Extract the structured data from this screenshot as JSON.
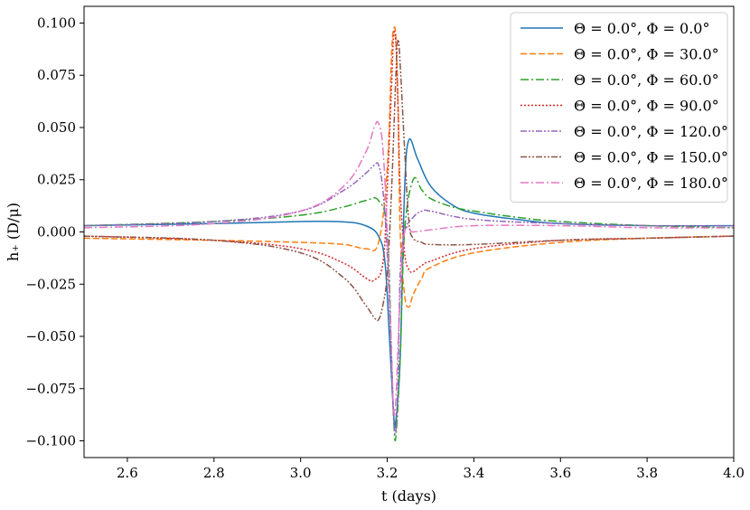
{
  "chart_data": {
    "type": "line",
    "xlabel": "t (days)",
    "ylabel": "h₊ (D/μ)",
    "xlim": [
      2.5,
      4.0
    ],
    "ylim": [
      -0.108,
      0.108
    ],
    "xticks": [
      2.6,
      2.8,
      3.0,
      3.2,
      3.4,
      3.6,
      3.8,
      4.0
    ],
    "xtick_labels": [
      "2.6",
      "2.8",
      "3.0",
      "3.2",
      "3.4",
      "3.6",
      "3.8",
      "4.0"
    ],
    "yticks": [
      -0.1,
      -0.075,
      -0.05,
      -0.025,
      0.0,
      0.025,
      0.05,
      0.075,
      0.1
    ],
    "ytick_labels": [
      "−0.100",
      "−0.075",
      "−0.050",
      "−0.025",
      "0.000",
      "0.025",
      "0.050",
      "0.075",
      "0.100"
    ],
    "grid": false,
    "legend_position": "top-right",
    "series": [
      {
        "name": "Θ = 0.0°,  Φ = 0.0°",
        "color": "#1f77b4",
        "dash": "solid",
        "x": [
          2.5,
          2.8,
          3.0,
          3.1,
          3.15,
          3.18,
          3.195,
          3.205,
          3.215,
          3.22,
          3.23,
          3.24,
          3.25,
          3.27,
          3.3,
          3.35,
          3.4,
          3.5,
          3.6,
          3.8,
          4.0
        ],
        "y": [
          0.003,
          0.004,
          0.005,
          0.0048,
          0.003,
          -0.002,
          -0.015,
          -0.05,
          -0.088,
          -0.09,
          -0.06,
          0.02,
          0.044,
          0.035,
          0.022,
          0.013,
          0.009,
          0.006,
          0.004,
          0.003,
          0.003
        ]
      },
      {
        "name": "Θ = 0.0°,  Φ = 30.0°",
        "color": "#ff7f0e",
        "dash": "dashed",
        "x": [
          2.5,
          2.8,
          3.0,
          3.1,
          3.15,
          3.18,
          3.2,
          3.21,
          3.215,
          3.22,
          3.225,
          3.23,
          3.24,
          3.25,
          3.26,
          3.28,
          3.3,
          3.4,
          3.6,
          3.8,
          4.0
        ],
        "y": [
          -0.003,
          -0.004,
          -0.005,
          -0.006,
          -0.008,
          -0.005,
          0.03,
          0.085,
          0.097,
          0.093,
          0.06,
          0.0,
          -0.03,
          -0.036,
          -0.03,
          -0.022,
          -0.017,
          -0.01,
          -0.005,
          -0.003,
          -0.002
        ]
      },
      {
        "name": "Θ = 0.0°,  Φ = 60.0°",
        "color": "#2ca02c",
        "dash": "dashdot",
        "x": [
          2.5,
          2.8,
          3.0,
          3.1,
          3.15,
          3.18,
          3.2,
          3.21,
          3.215,
          3.22,
          3.23,
          3.24,
          3.26,
          3.28,
          3.3,
          3.35,
          3.4,
          3.5,
          3.6,
          3.8,
          4.0
        ],
        "y": [
          0.003,
          0.005,
          0.008,
          0.012,
          0.015,
          0.015,
          0.0,
          -0.06,
          -0.09,
          -0.098,
          -0.06,
          0.0,
          0.025,
          0.02,
          0.016,
          0.012,
          0.01,
          0.007,
          0.005,
          0.003,
          0.002
        ]
      },
      {
        "name": "Θ = 0.0°,  Φ = 90.0°",
        "color": "#d62728",
        "dash": "dotted",
        "x": [
          2.5,
          2.8,
          3.0,
          3.1,
          3.15,
          3.17,
          3.19,
          3.2,
          3.21,
          3.215,
          3.22,
          3.225,
          3.23,
          3.24,
          3.25,
          3.26,
          3.28,
          3.3,
          3.4,
          3.6,
          3.8,
          4.0
        ],
        "y": [
          -0.002,
          -0.004,
          -0.008,
          -0.015,
          -0.022,
          -0.023,
          -0.015,
          0.02,
          0.07,
          0.095,
          0.09,
          0.06,
          0.02,
          -0.01,
          -0.018,
          -0.019,
          -0.016,
          -0.014,
          -0.008,
          -0.004,
          -0.003,
          -0.002
        ]
      },
      {
        "name": "Θ = 0.0°,  Φ = 120.0°",
        "color": "#9467bd",
        "dash": "dashdotdot",
        "x": [
          2.5,
          2.8,
          3.0,
          3.1,
          3.15,
          3.17,
          3.18,
          3.19,
          3.2,
          3.21,
          3.215,
          3.22,
          3.225,
          3.23,
          3.24,
          3.26,
          3.28,
          3.3,
          3.4,
          3.6,
          3.8,
          4.0
        ],
        "y": [
          0.003,
          0.005,
          0.01,
          0.02,
          0.028,
          0.032,
          0.032,
          0.02,
          -0.01,
          -0.06,
          -0.09,
          -0.095,
          -0.07,
          -0.02,
          0.0,
          0.007,
          0.01,
          0.01,
          0.006,
          0.004,
          0.003,
          0.003
        ]
      },
      {
        "name": "Θ = 0.0°,  Φ = 150.0°",
        "color": "#8c564b",
        "dash": "dashdotdot",
        "x": [
          2.5,
          2.8,
          3.0,
          3.1,
          3.15,
          3.17,
          3.18,
          3.19,
          3.2,
          3.21,
          3.22,
          3.225,
          3.23,
          3.24,
          3.25,
          3.26,
          3.28,
          3.3,
          3.4,
          3.6,
          3.8,
          4.0
        ],
        "y": [
          -0.002,
          -0.004,
          -0.01,
          -0.022,
          -0.035,
          -0.041,
          -0.042,
          -0.035,
          -0.02,
          0.02,
          0.075,
          0.092,
          0.08,
          0.04,
          0.005,
          -0.003,
          -0.005,
          -0.006,
          -0.006,
          -0.004,
          -0.003,
          -0.002
        ]
      },
      {
        "name": "Θ = 0.0°,  Φ = 180.0°",
        "color": "#e377c2",
        "dash": "dashdot",
        "x": [
          2.5,
          2.8,
          3.0,
          3.1,
          3.15,
          3.17,
          3.18,
          3.19,
          3.2,
          3.21,
          3.215,
          3.22,
          3.23,
          3.24,
          3.26,
          3.3,
          3.4,
          3.6,
          3.8,
          4.0
        ],
        "y": [
          0.002,
          0.004,
          0.01,
          0.022,
          0.038,
          0.05,
          0.052,
          0.04,
          0.0,
          -0.06,
          -0.085,
          -0.08,
          -0.03,
          0.0,
          0.0,
          0.001,
          0.003,
          0.003,
          0.002,
          0.002
        ]
      }
    ]
  }
}
